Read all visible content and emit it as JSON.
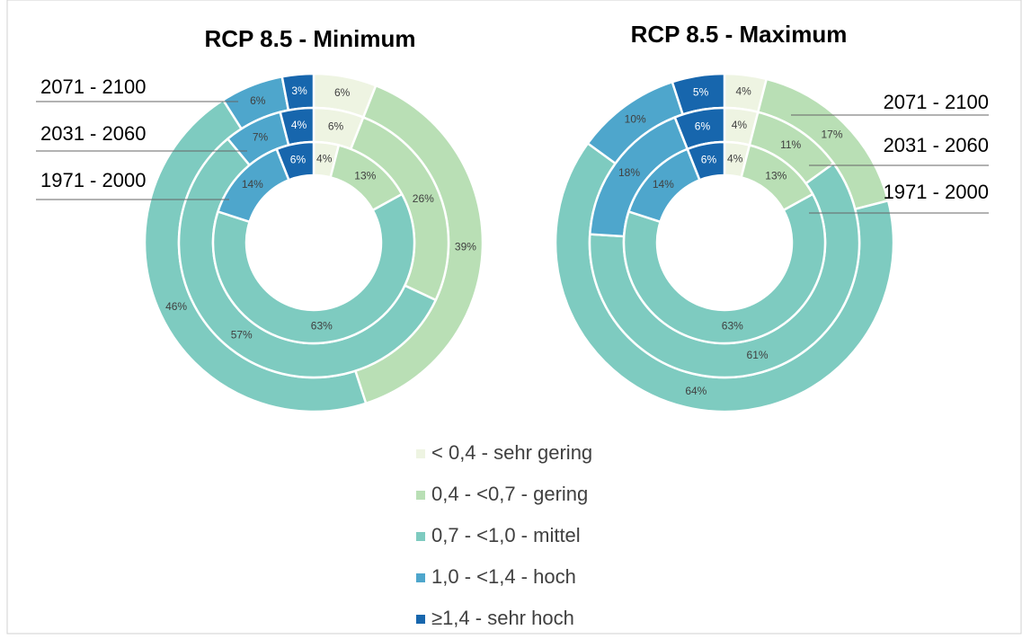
{
  "chart_data": [
    {
      "type": "donut",
      "title": "RCP 8.5 - Minimum",
      "series": [
        {
          "name": "2071 - 2100",
          "values": [
            6,
            39,
            46,
            6,
            3
          ],
          "value_labels": [
            "6%",
            "39%",
            "46%",
            "6%",
            "3%"
          ]
        },
        {
          "name": "2031 - 2060",
          "values": [
            6,
            26,
            57,
            7,
            4
          ],
          "value_labels": [
            "6%",
            "26%",
            "57%",
            "7%",
            "4%"
          ]
        },
        {
          "name": "1971 - 2000",
          "values": [
            4,
            13,
            63,
            14,
            6
          ],
          "value_labels": [
            "4%",
            "13%",
            "63%",
            "14%",
            "6%"
          ]
        }
      ]
    },
    {
      "type": "donut",
      "title": "RCP 8.5 - Maximum",
      "series": [
        {
          "name": "2071 - 2100",
          "values": [
            4,
            17,
            64,
            10,
            5
          ],
          "value_labels": [
            "4%",
            "17%",
            "64%",
            "10%",
            "5%"
          ]
        },
        {
          "name": "2031 - 2060",
          "values": [
            4,
            11,
            61,
            18,
            6
          ],
          "value_labels": [
            "4%",
            "11%",
            "61%",
            "18%",
            "6%"
          ]
        },
        {
          "name": "1971 - 2000",
          "values": [
            4,
            13,
            63,
            14,
            6
          ],
          "value_labels": [
            "4%",
            "13%",
            "63%",
            "14%",
            "6%"
          ]
        }
      ]
    }
  ],
  "legend": {
    "categories": [
      "< 0,4 - sehr gering",
      "0,4 - <0,7 - gering",
      "0,7 - <1,0 - mittel",
      "1,0 - <1,4 - hoch",
      "≥1,4 - sehr hoch"
    ],
    "colors": [
      "#eef4e2",
      "#b9dfb5",
      "#7ecbc0",
      "#4ea6cc",
      "#1766ad"
    ]
  }
}
